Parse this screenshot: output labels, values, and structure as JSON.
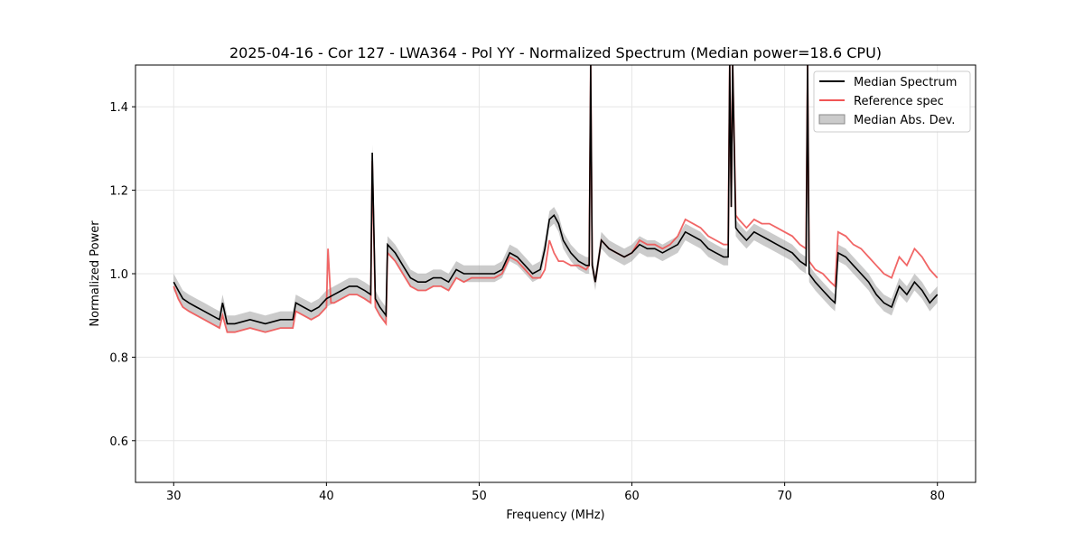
{
  "chart_data": {
    "type": "line",
    "title": "2025-04-16 - Cor 127 - LWA364 - Pol YY - Normalized Spectrum (Median power=18.6 CPU)",
    "xlabel": "Frequency (MHz)",
    "ylabel": "Normalized Power",
    "xlim": [
      27.5,
      82.5
    ],
    "ylim": [
      0.5,
      1.5
    ],
    "xticks": [
      30,
      40,
      50,
      60,
      70,
      80
    ],
    "yticks": [
      0.6,
      0.8,
      1.0,
      1.2,
      1.4
    ],
    "xtick_labels": [
      "30",
      "40",
      "50",
      "60",
      "70",
      "80"
    ],
    "ytick_labels": [
      "0.6",
      "0.8",
      "1.0",
      "1.2",
      "1.4"
    ],
    "grid": true,
    "legend_position": "top-right",
    "legend": [
      "Median Spectrum",
      "Reference spec",
      "Median Abs. Dev."
    ],
    "colors": {
      "median": "#000000",
      "reference": "#f05555",
      "mad": "#a9a9a9"
    },
    "series": [
      {
        "name": "Median Spectrum",
        "x": [
          30.0,
          30.3,
          30.6,
          31.0,
          31.5,
          32.0,
          32.5,
          33.0,
          33.2,
          33.5,
          34.0,
          35.0,
          36.0,
          37.0,
          37.8,
          38.0,
          38.5,
          39.0,
          39.5,
          40.0,
          40.5,
          41.0,
          41.5,
          42.0,
          42.5,
          42.9,
          43.0,
          43.2,
          43.5,
          43.9,
          44.0,
          44.5,
          45.0,
          45.5,
          46.0,
          46.5,
          47.0,
          47.5,
          48.0,
          48.5,
          49.0,
          49.5,
          50.0,
          50.5,
          51.0,
          51.5,
          52.0,
          52.5,
          53.0,
          53.5,
          54.0,
          54.3,
          54.6,
          54.9,
          55.2,
          55.5,
          56.0,
          56.5,
          57.0,
          57.2,
          57.3,
          57.4,
          57.6,
          58.0,
          58.5,
          59.0,
          59.5,
          60.0,
          60.5,
          61.0,
          61.5,
          62.0,
          62.5,
          63.0,
          63.5,
          64.0,
          64.5,
          65.0,
          65.5,
          66.0,
          66.3,
          66.4,
          66.5,
          66.6,
          66.8,
          67.0,
          67.5,
          68.0,
          68.5,
          69.0,
          69.5,
          70.0,
          70.5,
          71.0,
          71.4,
          71.5,
          71.6,
          72.0,
          72.5,
          73.0,
          73.3,
          73.5,
          74.0,
          74.5,
          75.0,
          75.5,
          76.0,
          76.5,
          77.0,
          77.5,
          78.0,
          78.5,
          79.0,
          79.5,
          80.0
        ],
        "values": [
          0.98,
          0.96,
          0.94,
          0.93,
          0.92,
          0.91,
          0.9,
          0.89,
          0.93,
          0.88,
          0.88,
          0.89,
          0.88,
          0.89,
          0.89,
          0.93,
          0.92,
          0.91,
          0.92,
          0.94,
          0.95,
          0.96,
          0.97,
          0.97,
          0.96,
          0.95,
          1.29,
          0.94,
          0.92,
          0.9,
          1.07,
          1.05,
          1.02,
          0.99,
          0.98,
          0.98,
          0.99,
          0.99,
          0.98,
          1.01,
          1.0,
          1.0,
          1.0,
          1.0,
          1.0,
          1.01,
          1.05,
          1.04,
          1.02,
          1.0,
          1.01,
          1.06,
          1.13,
          1.14,
          1.12,
          1.08,
          1.05,
          1.03,
          1.02,
          1.02,
          1.5,
          1.02,
          0.98,
          1.08,
          1.06,
          1.05,
          1.04,
          1.05,
          1.07,
          1.06,
          1.06,
          1.05,
          1.06,
          1.07,
          1.1,
          1.09,
          1.08,
          1.06,
          1.05,
          1.04,
          1.04,
          1.5,
          1.16,
          1.5,
          1.11,
          1.1,
          1.08,
          1.1,
          1.09,
          1.08,
          1.07,
          1.06,
          1.05,
          1.03,
          1.02,
          1.5,
          1.0,
          0.98,
          0.96,
          0.94,
          0.93,
          1.05,
          1.04,
          1.02,
          1.0,
          0.98,
          0.95,
          0.93,
          0.92,
          0.97,
          0.95,
          0.98,
          0.96,
          0.93,
          0.95
        ]
      },
      {
        "name": "Reference spec",
        "x": [
          30.0,
          30.3,
          30.6,
          31.0,
          31.5,
          32.0,
          32.5,
          33.0,
          33.2,
          33.5,
          34.0,
          35.0,
          36.0,
          37.0,
          37.8,
          38.0,
          38.5,
          39.0,
          39.5,
          40.0,
          40.1,
          40.3,
          40.5,
          41.0,
          41.5,
          42.0,
          42.5,
          42.9,
          43.0,
          43.2,
          43.5,
          43.9,
          44.0,
          44.5,
          45.0,
          45.5,
          46.0,
          46.5,
          47.0,
          47.5,
          48.0,
          48.5,
          49.0,
          49.5,
          50.0,
          50.5,
          51.0,
          51.5,
          52.0,
          52.5,
          53.0,
          53.5,
          54.0,
          54.3,
          54.6,
          54.9,
          55.2,
          55.5,
          56.0,
          56.5,
          57.0,
          57.2,
          57.3,
          57.4,
          57.6,
          58.0,
          58.5,
          59.0,
          59.5,
          60.0,
          60.5,
          61.0,
          61.5,
          62.0,
          62.5,
          63.0,
          63.5,
          64.0,
          64.5,
          65.0,
          65.5,
          66.0,
          66.3,
          66.4,
          66.5,
          66.6,
          66.8,
          67.0,
          67.5,
          68.0,
          68.5,
          69.0,
          69.5,
          70.0,
          70.5,
          71.0,
          71.4,
          71.5,
          71.6,
          72.0,
          72.5,
          73.0,
          73.3,
          73.5,
          74.0,
          74.5,
          75.0,
          75.5,
          76.0,
          76.5,
          77.0,
          77.5,
          78.0,
          78.5,
          79.0,
          79.5,
          80.0
        ],
        "values": [
          0.97,
          0.94,
          0.92,
          0.91,
          0.9,
          0.89,
          0.88,
          0.87,
          0.9,
          0.86,
          0.86,
          0.87,
          0.86,
          0.87,
          0.87,
          0.91,
          0.9,
          0.89,
          0.9,
          0.92,
          1.06,
          0.93,
          0.93,
          0.94,
          0.95,
          0.95,
          0.94,
          0.93,
          1.27,
          0.92,
          0.9,
          0.88,
          1.05,
          1.03,
          1.0,
          0.97,
          0.96,
          0.96,
          0.97,
          0.97,
          0.96,
          0.99,
          0.98,
          0.99,
          0.99,
          0.99,
          0.99,
          1.0,
          1.04,
          1.03,
          1.01,
          0.99,
          0.99,
          1.01,
          1.08,
          1.05,
          1.03,
          1.03,
          1.02,
          1.02,
          1.01,
          1.02,
          1.5,
          1.02,
          0.98,
          1.08,
          1.06,
          1.05,
          1.04,
          1.05,
          1.08,
          1.07,
          1.07,
          1.06,
          1.07,
          1.09,
          1.13,
          1.12,
          1.11,
          1.09,
          1.08,
          1.07,
          1.07,
          1.5,
          1.16,
          1.5,
          1.14,
          1.13,
          1.11,
          1.13,
          1.12,
          1.12,
          1.11,
          1.1,
          1.09,
          1.07,
          1.06,
          1.5,
          1.03,
          1.01,
          1.0,
          0.98,
          0.97,
          1.1,
          1.09,
          1.07,
          1.06,
          1.04,
          1.02,
          1.0,
          0.99,
          1.04,
          1.02,
          1.06,
          1.04,
          1.01,
          0.99
        ]
      }
    ],
    "mad_halfwidth": 0.02
  }
}
